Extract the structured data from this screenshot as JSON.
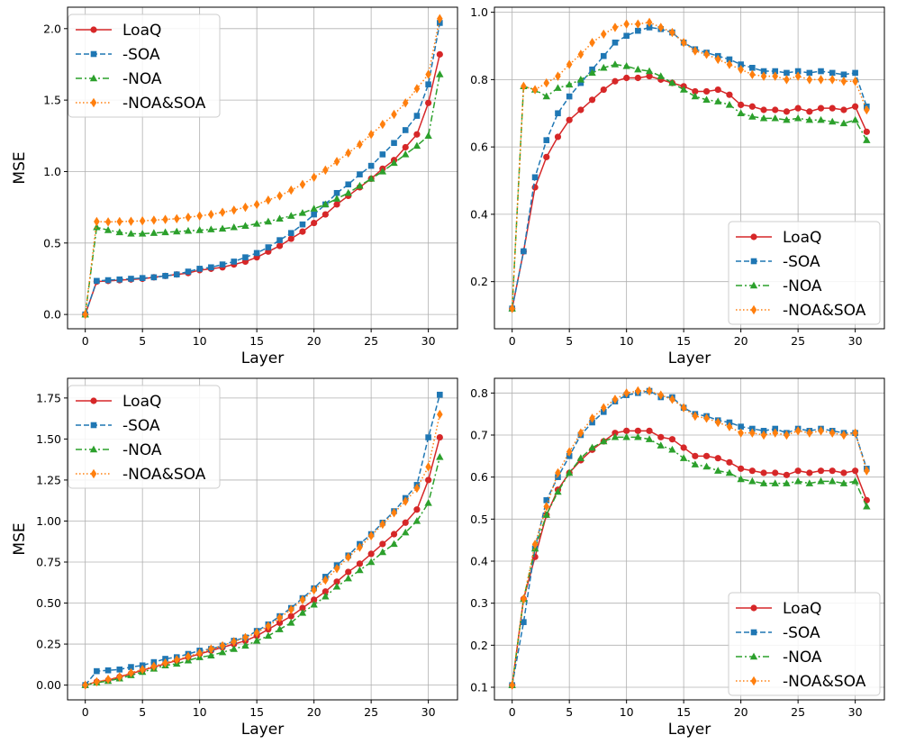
{
  "colors": {
    "LoaQ": "#d62728",
    "-SOA": "#1f77b4",
    "-NOA": "#2ca02c",
    "-NOA&SOA": "#ff7f0e"
  },
  "chart_data": [
    {
      "type": "line",
      "xlabel": "Layer",
      "ylabel": "MSE",
      "xlim": [
        -1.55,
        32.55
      ],
      "ylim": [
        -0.1,
        2.15
      ],
      "xticks": [
        0,
        5,
        10,
        15,
        20,
        25,
        30
      ],
      "yticks": [
        0.0,
        0.5,
        1.0,
        1.5,
        2.0
      ],
      "ytick_labels": [
        "0.0",
        "0.5",
        "1.0",
        "1.5",
        "2.0"
      ],
      "legend_position": "upper-left",
      "x": [
        0,
        1,
        2,
        3,
        4,
        5,
        6,
        7,
        8,
        9,
        10,
        11,
        12,
        13,
        14,
        15,
        16,
        17,
        18,
        19,
        20,
        21,
        22,
        23,
        24,
        25,
        26,
        27,
        28,
        29,
        30,
        31
      ],
      "series": [
        {
          "name": "LoaQ",
          "style": "solid",
          "marker": "circle",
          "values": [
            0.0,
            0.23,
            0.235,
            0.24,
            0.245,
            0.25,
            0.26,
            0.27,
            0.28,
            0.29,
            0.31,
            0.32,
            0.33,
            0.35,
            0.37,
            0.4,
            0.44,
            0.48,
            0.53,
            0.58,
            0.64,
            0.7,
            0.77,
            0.83,
            0.89,
            0.95,
            1.02,
            1.08,
            1.17,
            1.26,
            1.48,
            1.82
          ]
        },
        {
          "name": "-SOA",
          "style": "dashed",
          "marker": "square",
          "values": [
            0.0,
            0.235,
            0.24,
            0.245,
            0.25,
            0.255,
            0.26,
            0.27,
            0.28,
            0.3,
            0.32,
            0.33,
            0.35,
            0.37,
            0.4,
            0.43,
            0.47,
            0.52,
            0.57,
            0.63,
            0.7,
            0.77,
            0.85,
            0.91,
            0.98,
            1.04,
            1.12,
            1.2,
            1.29,
            1.39,
            1.61,
            2.04
          ]
        },
        {
          "name": "-NOA",
          "style": "dashdot",
          "marker": "triangle",
          "values": [
            0.0,
            0.61,
            0.59,
            0.575,
            0.565,
            0.565,
            0.57,
            0.575,
            0.58,
            0.585,
            0.59,
            0.595,
            0.6,
            0.61,
            0.62,
            0.635,
            0.65,
            0.67,
            0.69,
            0.71,
            0.74,
            0.77,
            0.81,
            0.85,
            0.9,
            0.95,
            1.0,
            1.06,
            1.12,
            1.18,
            1.25,
            1.68
          ]
        },
        {
          "name": "-NOA&SOA",
          "style": "dotted",
          "marker": "diamond",
          "values": [
            0.0,
            0.65,
            0.648,
            0.65,
            0.652,
            0.655,
            0.66,
            0.665,
            0.67,
            0.68,
            0.69,
            0.7,
            0.715,
            0.73,
            0.75,
            0.77,
            0.8,
            0.83,
            0.87,
            0.91,
            0.96,
            1.01,
            1.07,
            1.13,
            1.19,
            1.26,
            1.33,
            1.4,
            1.48,
            1.58,
            1.68,
            2.07
          ]
        }
      ]
    },
    {
      "type": "line",
      "xlabel": "Layer",
      "ylabel": "",
      "xlim": [
        -1.55,
        32.55
      ],
      "ylim": [
        0.06,
        1.015
      ],
      "xticks": [
        0,
        5,
        10,
        15,
        20,
        25,
        30
      ],
      "yticks": [
        0.2,
        0.4,
        0.6,
        0.8,
        1.0
      ],
      "ytick_labels": [
        "0.2",
        "0.4",
        "0.6",
        "0.8",
        "1.0"
      ],
      "legend_position": "lower-right",
      "x": [
        0,
        1,
        2,
        3,
        4,
        5,
        6,
        7,
        8,
        9,
        10,
        11,
        12,
        13,
        14,
        15,
        16,
        17,
        18,
        19,
        20,
        21,
        22,
        23,
        24,
        25,
        26,
        27,
        28,
        29,
        30,
        31
      ],
      "series": [
        {
          "name": "LoaQ",
          "style": "solid",
          "marker": "circle",
          "values": [
            0.12,
            0.29,
            0.48,
            0.57,
            0.63,
            0.68,
            0.71,
            0.74,
            0.77,
            0.795,
            0.805,
            0.805,
            0.81,
            0.8,
            0.79,
            0.78,
            0.765,
            0.765,
            0.77,
            0.755,
            0.725,
            0.72,
            0.71,
            0.71,
            0.705,
            0.715,
            0.705,
            0.715,
            0.715,
            0.71,
            0.72,
            0.645
          ]
        },
        {
          "name": "-SOA",
          "style": "dashed",
          "marker": "square",
          "values": [
            0.12,
            0.29,
            0.51,
            0.62,
            0.7,
            0.75,
            0.79,
            0.83,
            0.87,
            0.91,
            0.93,
            0.945,
            0.955,
            0.95,
            0.94,
            0.91,
            0.89,
            0.88,
            0.87,
            0.86,
            0.845,
            0.835,
            0.825,
            0.825,
            0.82,
            0.825,
            0.82,
            0.825,
            0.82,
            0.815,
            0.82,
            0.72
          ]
        },
        {
          "name": "-NOA",
          "style": "dashdot",
          "marker": "triangle",
          "values": [
            0.12,
            0.78,
            0.77,
            0.75,
            0.775,
            0.785,
            0.8,
            0.82,
            0.835,
            0.845,
            0.84,
            0.83,
            0.825,
            0.81,
            0.79,
            0.77,
            0.75,
            0.74,
            0.735,
            0.725,
            0.7,
            0.69,
            0.685,
            0.685,
            0.68,
            0.685,
            0.68,
            0.68,
            0.675,
            0.67,
            0.68,
            0.62
          ]
        },
        {
          "name": "-NOA&SOA",
          "style": "dotted",
          "marker": "diamond",
          "values": [
            0.12,
            0.78,
            0.77,
            0.79,
            0.81,
            0.845,
            0.875,
            0.91,
            0.935,
            0.955,
            0.965,
            0.965,
            0.97,
            0.955,
            0.94,
            0.91,
            0.885,
            0.875,
            0.86,
            0.845,
            0.83,
            0.815,
            0.81,
            0.81,
            0.8,
            0.81,
            0.8,
            0.8,
            0.8,
            0.795,
            0.795,
            0.71
          ]
        }
      ]
    },
    {
      "type": "line",
      "xlabel": "Layer",
      "ylabel": "MSE",
      "xlim": [
        -1.55,
        32.55
      ],
      "ylim": [
        -0.09,
        1.87
      ],
      "xticks": [
        0,
        5,
        10,
        15,
        20,
        25,
        30
      ],
      "yticks": [
        0.0,
        0.25,
        0.5,
        0.75,
        1.0,
        1.25,
        1.5,
        1.75
      ],
      "ytick_labels": [
        "0.00",
        "0.25",
        "0.50",
        "0.75",
        "1.00",
        "1.25",
        "1.50",
        "1.75"
      ],
      "legend_position": "upper-left",
      "x": [
        0,
        1,
        2,
        3,
        4,
        5,
        6,
        7,
        8,
        9,
        10,
        11,
        12,
        13,
        14,
        15,
        16,
        17,
        18,
        19,
        20,
        21,
        22,
        23,
        24,
        25,
        26,
        27,
        28,
        29,
        30,
        31
      ],
      "series": [
        {
          "name": "LoaQ",
          "style": "solid",
          "marker": "circle",
          "values": [
            0.0,
            0.02,
            0.03,
            0.05,
            0.07,
            0.09,
            0.11,
            0.13,
            0.15,
            0.17,
            0.19,
            0.21,
            0.23,
            0.25,
            0.27,
            0.3,
            0.34,
            0.38,
            0.42,
            0.47,
            0.52,
            0.57,
            0.63,
            0.69,
            0.74,
            0.8,
            0.86,
            0.92,
            0.99,
            1.07,
            1.25,
            1.51
          ]
        },
        {
          "name": "-SOA",
          "style": "dashed",
          "marker": "square",
          "values": [
            0.0,
            0.085,
            0.09,
            0.095,
            0.11,
            0.12,
            0.14,
            0.16,
            0.17,
            0.19,
            0.21,
            0.22,
            0.24,
            0.27,
            0.29,
            0.33,
            0.37,
            0.42,
            0.47,
            0.53,
            0.59,
            0.66,
            0.73,
            0.79,
            0.86,
            0.92,
            0.99,
            1.06,
            1.14,
            1.22,
            1.51,
            1.77
          ]
        },
        {
          "name": "-NOA",
          "style": "dashdot",
          "marker": "triangle",
          "values": [
            0.0,
            0.015,
            0.025,
            0.04,
            0.06,
            0.08,
            0.1,
            0.12,
            0.13,
            0.15,
            0.17,
            0.18,
            0.2,
            0.22,
            0.24,
            0.27,
            0.3,
            0.34,
            0.38,
            0.44,
            0.49,
            0.54,
            0.6,
            0.65,
            0.7,
            0.75,
            0.81,
            0.86,
            0.93,
            1.0,
            1.11,
            1.39
          ]
        },
        {
          "name": "-NOA&SOA",
          "style": "dotted",
          "marker": "diamond",
          "values": [
            0.0,
            0.02,
            0.035,
            0.05,
            0.075,
            0.095,
            0.115,
            0.135,
            0.155,
            0.175,
            0.195,
            0.22,
            0.24,
            0.265,
            0.29,
            0.32,
            0.36,
            0.41,
            0.46,
            0.52,
            0.58,
            0.64,
            0.71,
            0.78,
            0.84,
            0.91,
            0.98,
            1.05,
            1.12,
            1.2,
            1.33,
            1.65
          ]
        }
      ]
    },
    {
      "type": "line",
      "xlabel": "Layer",
      "ylabel": "",
      "xlim": [
        -1.55,
        32.55
      ],
      "ylim": [
        0.07,
        0.835
      ],
      "xticks": [
        0,
        5,
        10,
        15,
        20,
        25,
        30
      ],
      "yticks": [
        0.1,
        0.2,
        0.3,
        0.4,
        0.5,
        0.6,
        0.7,
        0.8
      ],
      "ytick_labels": [
        "0.1",
        "0.2",
        "0.3",
        "0.4",
        "0.5",
        "0.6",
        "0.7",
        "0.8"
      ],
      "legend_position": "lower-right",
      "x": [
        0,
        1,
        2,
        3,
        4,
        5,
        6,
        7,
        8,
        9,
        10,
        11,
        12,
        13,
        14,
        15,
        16,
        17,
        18,
        19,
        20,
        21,
        22,
        23,
        24,
        25,
        26,
        27,
        28,
        29,
        30,
        31
      ],
      "series": [
        {
          "name": "LoaQ",
          "style": "solid",
          "marker": "circle",
          "values": [
            0.105,
            0.31,
            0.41,
            0.51,
            0.57,
            0.61,
            0.64,
            0.665,
            0.685,
            0.705,
            0.71,
            0.71,
            0.71,
            0.695,
            0.69,
            0.67,
            0.65,
            0.65,
            0.645,
            0.635,
            0.62,
            0.615,
            0.61,
            0.61,
            0.605,
            0.615,
            0.61,
            0.615,
            0.615,
            0.61,
            0.615,
            0.545
          ]
        },
        {
          "name": "-SOA",
          "style": "dashed",
          "marker": "square",
          "values": [
            0.105,
            0.255,
            0.43,
            0.545,
            0.6,
            0.65,
            0.7,
            0.73,
            0.755,
            0.78,
            0.795,
            0.8,
            0.805,
            0.79,
            0.79,
            0.765,
            0.75,
            0.745,
            0.735,
            0.73,
            0.72,
            0.715,
            0.71,
            0.715,
            0.705,
            0.715,
            0.71,
            0.715,
            0.71,
            0.705,
            0.705,
            0.62
          ]
        },
        {
          "name": "-NOA",
          "style": "dashdot",
          "marker": "triangle",
          "values": [
            0.105,
            0.31,
            0.43,
            0.51,
            0.565,
            0.61,
            0.645,
            0.67,
            0.685,
            0.695,
            0.695,
            0.695,
            0.69,
            0.675,
            0.665,
            0.645,
            0.63,
            0.625,
            0.615,
            0.61,
            0.595,
            0.59,
            0.585,
            0.585,
            0.585,
            0.59,
            0.585,
            0.59,
            0.59,
            0.585,
            0.59,
            0.53
          ]
        },
        {
          "name": "-NOA&SOA",
          "style": "dotted",
          "marker": "diamond",
          "values": [
            0.105,
            0.31,
            0.44,
            0.53,
            0.61,
            0.66,
            0.705,
            0.74,
            0.765,
            0.785,
            0.8,
            0.805,
            0.805,
            0.795,
            0.785,
            0.765,
            0.745,
            0.74,
            0.73,
            0.72,
            0.705,
            0.705,
            0.7,
            0.705,
            0.7,
            0.71,
            0.705,
            0.71,
            0.705,
            0.7,
            0.705,
            0.615
          ]
        }
      ]
    }
  ]
}
